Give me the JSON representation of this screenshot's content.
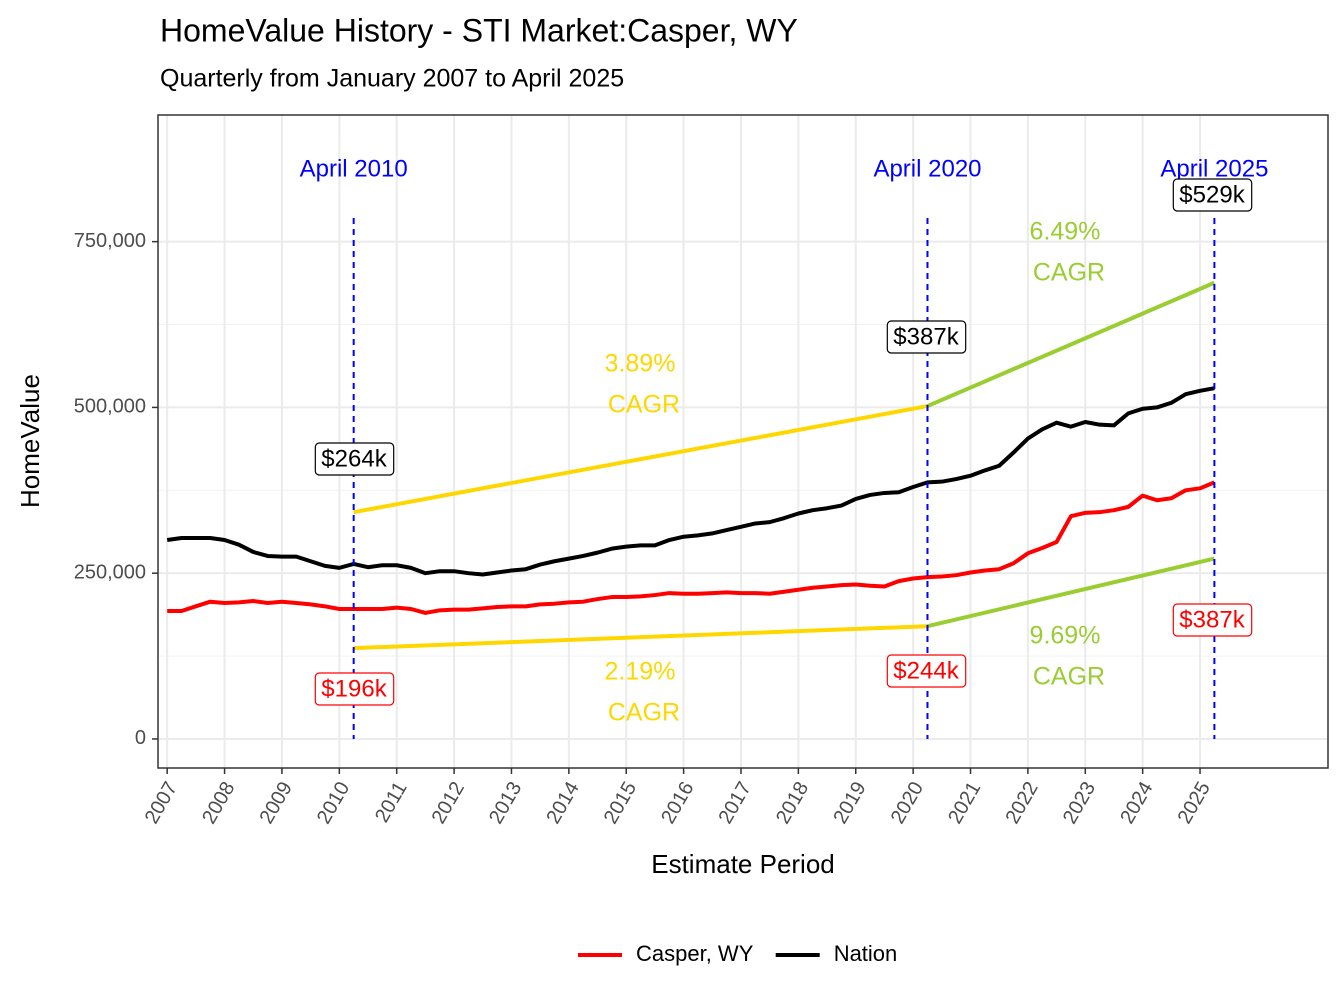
{
  "chart_data": {
    "type": "line",
    "title": "HomeValue History - STI Market:Casper, WY",
    "subtitle": "Quarterly from January 2007 to April 2025",
    "x_label": "Estimate Period",
    "y_label": "HomeValue",
    "xlim": [
      2006.84,
      2027.23
    ],
    "ylim": [
      -43800,
      941000
    ],
    "xticks": [
      2007,
      2008,
      2009,
      2010,
      2011,
      2012,
      2013,
      2014,
      2015,
      2016,
      2017,
      2018,
      2019,
      2020,
      2021,
      2022,
      2023,
      2024,
      2025
    ],
    "yticks": [
      0,
      {
        "value": 250000,
        "label": "250,000"
      },
      {
        "value": 500000,
        "label": "500,000"
      },
      {
        "value": 750000,
        "label": "750,000"
      }
    ],
    "grid": true,
    "legend": "bottom",
    "x": [
      2007,
      2007.25,
      2007.5,
      2007.75,
      2008,
      2008.25,
      2008.5,
      2008.75,
      2009,
      2009.25,
      2009.5,
      2009.75,
      2010,
      2010.25,
      2010.5,
      2010.75,
      2011,
      2011.25,
      2011.5,
      2011.75,
      2012,
      2012.25,
      2012.5,
      2012.75,
      2013,
      2013.25,
      2013.5,
      2013.75,
      2014,
      2014.25,
      2014.5,
      2014.75,
      2015,
      2015.25,
      2015.5,
      2015.75,
      2016,
      2016.25,
      2016.5,
      2016.75,
      2017,
      2017.25,
      2017.5,
      2017.75,
      2018,
      2018.25,
      2018.5,
      2018.75,
      2019,
      2019.25,
      2019.5,
      2019.75,
      2020,
      2020.25,
      2020.5,
      2020.75,
      2021,
      2021.25,
      2021.5,
      2021.75,
      2022,
      2022.25,
      2022.5,
      2022.75,
      2023,
      2023.25,
      2023.5,
      2023.75,
      2024,
      2024.25,
      2024.5,
      2024.75,
      2025,
      2025.25
    ],
    "series": [
      {
        "name": "Casper, WY",
        "color": "#FF0000",
        "values": [
          193000,
          193000,
          200000,
          207000,
          205000,
          206000,
          208000,
          205000,
          207000,
          205000,
          203000,
          200000,
          196000,
          196000,
          196000,
          196000,
          198000,
          196000,
          190000,
          194000,
          195000,
          195000,
          197000,
          199000,
          200000,
          200000,
          203000,
          204000,
          206000,
          207000,
          211000,
          214000,
          214000,
          215000,
          217000,
          220000,
          219000,
          219000,
          220000,
          221000,
          220000,
          220000,
          219000,
          222000,
          225000,
          228000,
          230000,
          232000,
          233000,
          231000,
          230000,
          238000,
          242000,
          244000,
          245000,
          247000,
          251000,
          254000,
          256000,
          265000,
          280000,
          288000,
          297000,
          336000,
          341000,
          342000,
          345000,
          350000,
          367000,
          360000,
          363000,
          375000,
          378000,
          387000
        ]
      },
      {
        "name": "Nation",
        "color": "#000000",
        "values": [
          300000,
          303000,
          303000,
          303000,
          300000,
          293000,
          282000,
          276000,
          275000,
          275000,
          268000,
          261000,
          258000,
          264000,
          259000,
          262000,
          262000,
          258000,
          250000,
          253000,
          253000,
          250000,
          248000,
          251000,
          254000,
          256000,
          263000,
          268000,
          272000,
          276000,
          281000,
          287000,
          290000,
          292000,
          292000,
          300000,
          305000,
          307000,
          310000,
          315000,
          320000,
          325000,
          327000,
          333000,
          340000,
          345000,
          348000,
          352000,
          362000,
          368000,
          371000,
          372000,
          380000,
          387000,
          388000,
          392000,
          397000,
          405000,
          412000,
          432000,
          453000,
          467000,
          477000,
          471000,
          478000,
          474000,
          473000,
          491000,
          498000,
          500000,
          507000,
          520000,
          525000,
          529000
        ]
      }
    ],
    "trend_lines": [
      {
        "color": "#FFD700",
        "x": [
          2010.25,
          2020.25
        ],
        "values": [
          342000,
          502000
        ]
      },
      {
        "color": "#9ACD32",
        "x": [
          2020.25,
          2025.25
        ],
        "values": [
          502000,
          688000
        ]
      },
      {
        "color": "#FFD700",
        "x": [
          2010.25,
          2020.25
        ],
        "values": [
          137000,
          170000
        ]
      },
      {
        "color": "#9ACD32",
        "x": [
          2020.25,
          2025.25
        ],
        "values": [
          170000,
          272000
        ]
      }
    ],
    "vlines": [
      {
        "x": 2010.25,
        "label": "April 2010",
        "color": "#0000FF"
      },
      {
        "x": 2020.25,
        "label": "April 2020",
        "color": "#0000FF"
      },
      {
        "x": 2025.25,
        "label": "April 2025",
        "color": "#0000FF"
      }
    ],
    "cagr_labels": [
      {
        "rate": "3.89%",
        "label": "CAGR",
        "color": "#FFD700"
      },
      {
        "rate": "6.49%",
        "label": "CAGR",
        "color": "#9ACD32"
      },
      {
        "rate": "2.19%",
        "label": "CAGR",
        "color": "#FFD700"
      },
      {
        "rate": "9.69%",
        "label": "CAGR",
        "color": "#9ACD32"
      }
    ],
    "point_labels": [
      {
        "text": "$264k",
        "color": "#000000"
      },
      {
        "text": "$196k",
        "color": "#FF0000"
      },
      {
        "text": "$387k",
        "color": "#000000"
      },
      {
        "text": "$244k",
        "color": "#FF0000"
      },
      {
        "text": "$529k",
        "color": "#000000"
      },
      {
        "text": "$387k",
        "color": "#FF0000"
      }
    ]
  }
}
